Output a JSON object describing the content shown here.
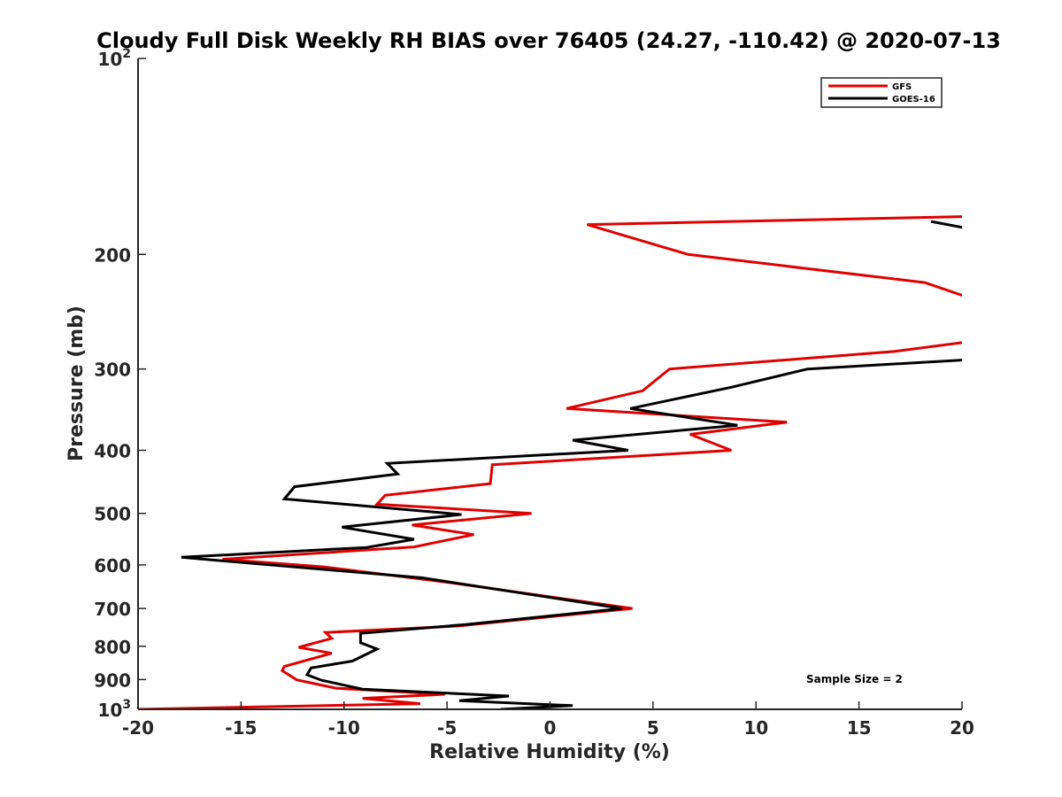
{
  "chart_data": {
    "type": "line",
    "title": "Cloudy Full Disk Weekly RH BIAS over 76405 (24.27, -110.42) @ 2020-07-13",
    "xlabel": "Relative Humidity (%)",
    "ylabel": "Pressure (mb)",
    "xlim": [
      -20,
      20
    ],
    "ylim": [
      100,
      1000
    ],
    "yscale": "log",
    "y_reversed": true,
    "x_ticks": [
      -20,
      -15,
      -10,
      -5,
      0,
      5,
      10,
      15,
      20
    ],
    "y_ticks": [
      {
        "value": 100,
        "base": "10",
        "exp": "2"
      },
      {
        "value": 200,
        "label": "200"
      },
      {
        "value": 300,
        "label": "300"
      },
      {
        "value": 400,
        "label": "400"
      },
      {
        "value": 500,
        "label": "500"
      },
      {
        "value": 600,
        "label": "600"
      },
      {
        "value": 700,
        "label": "700"
      },
      {
        "value": 800,
        "label": "800"
      },
      {
        "value": 900,
        "label": "900"
      },
      {
        "value": 1000,
        "base": "10",
        "exp": "3"
      }
    ],
    "legend_position": "top-right",
    "annotation": "Sample Size = 2",
    "series": [
      {
        "name": "GFS",
        "color": "#e00000",
        "points": [
          [
            20.0,
            175
          ],
          [
            1.8,
            180
          ],
          [
            6.7,
            200
          ],
          [
            18.2,
            221
          ],
          [
            20.5,
            234
          ],
          [
            null,
            null
          ],
          [
            20.5,
            272
          ],
          [
            16.7,
            282
          ],
          [
            5.8,
            300
          ],
          [
            4.5,
            324
          ],
          [
            0.8,
            345
          ],
          [
            11.5,
            362
          ],
          [
            6.8,
            378
          ],
          [
            8.8,
            400
          ],
          [
            -2.8,
            421
          ],
          [
            -2.9,
            450
          ],
          [
            -8.0,
            469
          ],
          [
            -8.4,
            484
          ],
          [
            -0.9,
            500
          ],
          [
            -6.7,
            521
          ],
          [
            -3.7,
            539
          ],
          [
            -6.6,
            563
          ],
          [
            -15.9,
            588
          ],
          [
            -11.0,
            604
          ],
          [
            -5.0,
            638
          ],
          [
            4.0,
            700
          ],
          [
            -4.5,
            745
          ],
          [
            -10.9,
            762
          ],
          [
            -10.6,
            778
          ],
          [
            -12.2,
            803
          ],
          [
            -10.6,
            820
          ],
          [
            -12.9,
            859
          ],
          [
            -13.0,
            872
          ],
          [
            -12.3,
            901
          ],
          [
            -10.4,
            928
          ],
          [
            -5.1,
            948
          ],
          [
            -9.1,
            962
          ],
          [
            -6.3,
            980
          ],
          [
            -20.0,
            1000
          ]
        ]
      },
      {
        "name": "GOES-16",
        "color": "#000000",
        "points": [
          [
            -2.4,
            1000
          ],
          [
            1.1,
            987
          ],
          [
            -4.4,
            970
          ],
          [
            -2.0,
            954
          ],
          [
            -9.1,
            931
          ],
          [
            -11.1,
            902
          ],
          [
            -11.8,
            885
          ],
          [
            -11.6,
            864
          ],
          [
            -9.6,
            843
          ],
          [
            -8.4,
            808
          ],
          [
            -9.2,
            790
          ],
          [
            -9.2,
            764
          ],
          [
            -4.1,
            741
          ],
          [
            3.5,
            700
          ],
          [
            -6.2,
            628
          ],
          [
            -17.9,
            584
          ],
          [
            -8.9,
            564
          ],
          [
            -6.6,
            548
          ],
          [
            -10.1,
            525
          ],
          [
            -4.3,
            502
          ],
          [
            -12.9,
            475
          ],
          [
            -12.4,
            455
          ],
          [
            -7.4,
            435
          ],
          [
            -7.9,
            419
          ],
          [
            3.8,
            400
          ],
          [
            1.1,
            386
          ],
          [
            9.1,
            366
          ],
          [
            3.9,
            345
          ],
          [
            8.8,
            320
          ],
          [
            12.5,
            300
          ],
          [
            20.5,
            290
          ],
          [
            null,
            null
          ],
          [
            18.5,
            178
          ],
          [
            20.5,
            183
          ]
        ]
      }
    ]
  }
}
